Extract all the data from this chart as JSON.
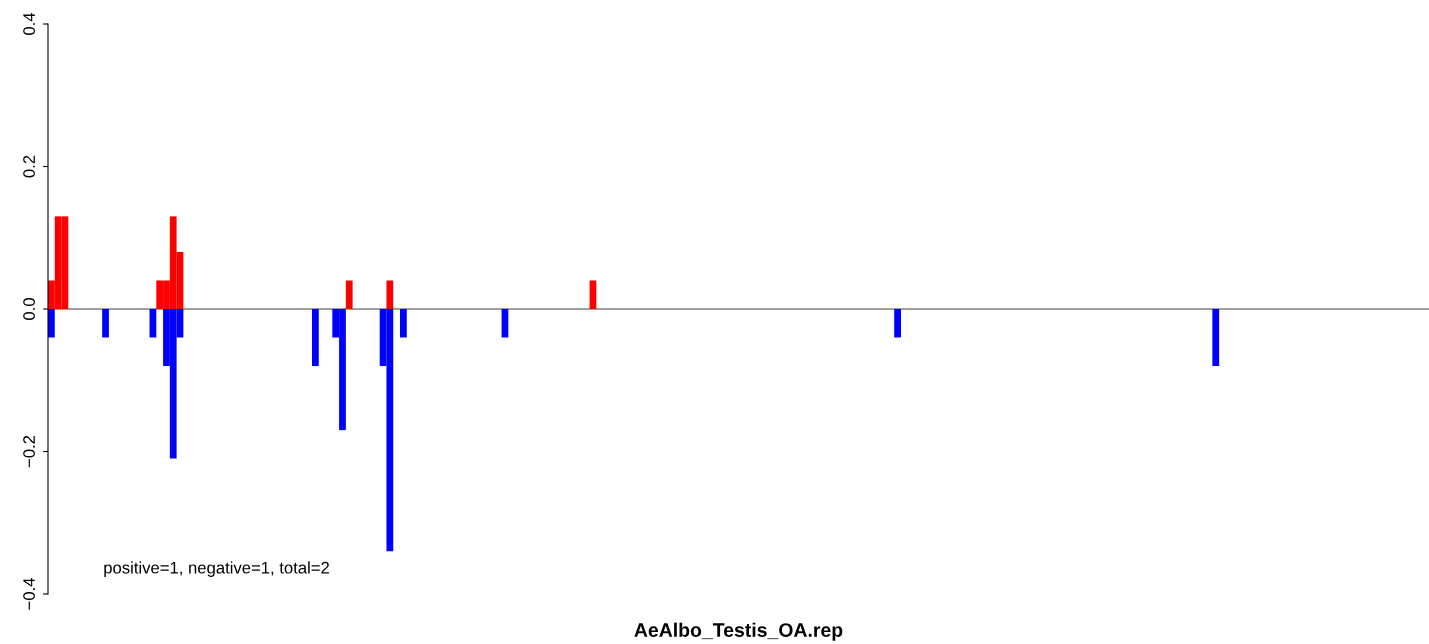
{
  "chart_data": {
    "type": "bar",
    "title": "AeAlbo_Testis_OA.rep",
    "categories": [
      null,
      null,
      null,
      null,
      null,
      null,
      null,
      null,
      null,
      null,
      null,
      null,
      null,
      null,
      null,
      null,
      null,
      null,
      null,
      null,
      null,
      null,
      null,
      null,
      null,
      null,
      null,
      null,
      null,
      null,
      null,
      null,
      null,
      null,
      null,
      null,
      null,
      null,
      null,
      null,
      null,
      null,
      null,
      null,
      null,
      null,
      null,
      null,
      null,
      null,
      null,
      null,
      null,
      null,
      null,
      null,
      null,
      null,
      null,
      null,
      null,
      null,
      null,
      null,
      null,
      null,
      null,
      null,
      null,
      null,
      null,
      null,
      null,
      null,
      null,
      null,
      null,
      null,
      null,
      null,
      null,
      null,
      null,
      null,
      null,
      null,
      null,
      null,
      null,
      null,
      null,
      null,
      null,
      null,
      null,
      null,
      null,
      null,
      null,
      null,
      null,
      null,
      null,
      null,
      null,
      null,
      null,
      null,
      null,
      null,
      null,
      null,
      null,
      null,
      null,
      null,
      null,
      null,
      null,
      null,
      null,
      null,
      null,
      null,
      null,
      null,
      null,
      null,
      null,
      null,
      null,
      null,
      null,
      null,
      null,
      null,
      null,
      null,
      null,
      null,
      null,
      null,
      null,
      null,
      null,
      null,
      null,
      null,
      null,
      null,
      null,
      null,
      null,
      null,
      null,
      null,
      null,
      null,
      null,
      null,
      null,
      null,
      null,
      null,
      null,
      null,
      null,
      null,
      null,
      null,
      null,
      null,
      null,
      null,
      null,
      null,
      null,
      null,
      null,
      null,
      null,
      null,
      null,
      null,
      null,
      null,
      null,
      null,
      null,
      null,
      null,
      null,
      null,
      null,
      null,
      null,
      null,
      null,
      null,
      null,
      null,
      null,
      null,
      null
    ],
    "series": [
      {
        "color": "#ff0000",
        "values": [
          0.04,
          0.13,
          0.13,
          0,
          0,
          0,
          0,
          0,
          0,
          0,
          0,
          0,
          0,
          0,
          0,
          0,
          0.04,
          0.04,
          0.13,
          0.08,
          0,
          0,
          0,
          0,
          0,
          0,
          0,
          0,
          0,
          0,
          0,
          0,
          0,
          0,
          0,
          0,
          0,
          0,
          0,
          0,
          0,
          0,
          0,
          0,
          0.04,
          0,
          0,
          0,
          0,
          0,
          0.04,
          0,
          0,
          0,
          0,
          0,
          0,
          0,
          0,
          0,
          0,
          0,
          0,
          0,
          0,
          0,
          0,
          0,
          0,
          0,
          0,
          0,
          0,
          0,
          0,
          0,
          0,
          0,
          0,
          0,
          0.04,
          0,
          0,
          0,
          0,
          0,
          0,
          0,
          0,
          0,
          0,
          0,
          0,
          0,
          0,
          0,
          0,
          0,
          0,
          0,
          0,
          0,
          0,
          0,
          0,
          0,
          0,
          0,
          0,
          0,
          0,
          0,
          0,
          0,
          0,
          0,
          0,
          0,
          0,
          0,
          0,
          0,
          0,
          0,
          0,
          0,
          0,
          0,
          0,
          0,
          0,
          0,
          0,
          0,
          0,
          0,
          0,
          0,
          0,
          0,
          0,
          0,
          0,
          0,
          0,
          0,
          0,
          0,
          0,
          0,
          0,
          0,
          0,
          0,
          0,
          0,
          0,
          0,
          0,
          0,
          0,
          0,
          0,
          0,
          0,
          0,
          0,
          0,
          0,
          0,
          0,
          0,
          0,
          0,
          0,
          0,
          0,
          0,
          0,
          0,
          0,
          0,
          0,
          0,
          0,
          0,
          0,
          0,
          0,
          0,
          0,
          0,
          0,
          0,
          0,
          0,
          0,
          0,
          0,
          0,
          0,
          0,
          0,
          0
        ]
      },
      {
        "color": "#0000ff",
        "values": [
          -0.04,
          0,
          0,
          0,
          0,
          0,
          0,
          0,
          -0.04,
          0,
          0,
          0,
          0,
          0,
          0,
          -0.04,
          0,
          -0.08,
          -0.21,
          -0.04,
          0,
          0,
          0,
          0,
          0,
          0,
          0,
          0,
          0,
          0,
          0,
          0,
          0,
          0,
          0,
          0,
          0,
          0,
          0,
          -0.08,
          0,
          0,
          -0.04,
          -0.17,
          0,
          0,
          0,
          0,
          0,
          -0.08,
          -0.34,
          0,
          -0.04,
          0,
          0,
          0,
          0,
          0,
          0,
          0,
          0,
          0,
          0,
          0,
          0,
          0,
          0,
          -0.04,
          0,
          0,
          0,
          0,
          0,
          0,
          0,
          0,
          0,
          0,
          0,
          0,
          0,
          0,
          0,
          0,
          0,
          0,
          0,
          0,
          0,
          0,
          0,
          0,
          0,
          0,
          0,
          0,
          0,
          0,
          0,
          0,
          0,
          0,
          0,
          0,
          0,
          0,
          0,
          0,
          0,
          0,
          0,
          0,
          0,
          0,
          0,
          0,
          0,
          0,
          0,
          0,
          0,
          0,
          0,
          0,
          0,
          -0.04,
          0,
          0,
          0,
          0,
          0,
          0,
          0,
          0,
          0,
          0,
          0,
          0,
          0,
          0,
          0,
          0,
          0,
          0,
          0,
          0,
          0,
          0,
          0,
          0,
          0,
          0,
          0,
          0,
          0,
          0,
          0,
          0,
          0,
          0,
          0,
          0,
          0,
          0,
          0,
          0,
          0,
          0,
          0,
          0,
          0,
          0,
          -0.08,
          0,
          0,
          0,
          0,
          0,
          0,
          0,
          0,
          0,
          0,
          0,
          0,
          0,
          0,
          0,
          0,
          0,
          0,
          0,
          0,
          0,
          0,
          0,
          0,
          0,
          0,
          0,
          0,
          0,
          0,
          0
        ]
      }
    ],
    "ylim": [
      -0.4,
      0.4
    ],
    "yticks": [
      {
        "value": -0.4,
        "label": "−0.4"
      },
      {
        "value": -0.2,
        "label": "−0.2"
      },
      {
        "value": 0,
        "label": "0.0"
      },
      0.2,
      0.4
    ],
    "ref_lines": [
      {
        "axis": "y",
        "value": 0,
        "color": "#808080"
      }
    ],
    "annotations": [
      "positive=1, negative=1, total=2"
    ]
  }
}
